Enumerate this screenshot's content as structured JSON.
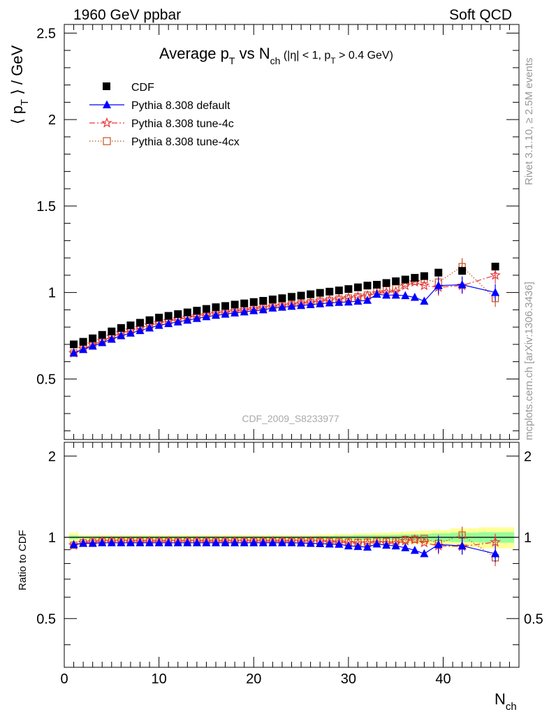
{
  "header": {
    "left": "1960 GeV ppbar",
    "right": "Soft QCD"
  },
  "side_text": {
    "rivet": "Rivet 3.1.10, ≥ 2.5M events",
    "mcplots": "mcplots.cern.ch [arXiv:1306.3436]"
  },
  "chart_data": [
    {
      "type": "scatter",
      "title": "Average pT vs Nch (|η| < 1, pT > 0.4 GeV)",
      "title_parts": {
        "main": "Average p",
        "sub1": "T",
        "vs": " vs N",
        "sub2": "ch",
        "cut_a": " (|η| < 1, p",
        "cut_sub": "T",
        "cut_b": " > 0.4 GeV)"
      },
      "ylabel": "⟨ pT ⟩ / GeV",
      "ylabel_parts": {
        "open": "⟨ p",
        "sub": "T",
        "close": " ⟩ / GeV"
      },
      "xlabel": "Nch",
      "xlabel_parts": {
        "main": "N",
        "sub": "ch"
      },
      "xlim": [
        0,
        48
      ],
      "ylim": [
        0.15,
        2.55
      ],
      "yticks": [
        0.5,
        1,
        1.5,
        2,
        2.5
      ],
      "ytick_labels": [
        "0.5",
        "1",
        "1.5",
        "2",
        "2.5"
      ],
      "xticks": [
        0,
        10,
        20,
        30,
        40
      ],
      "xtick_labels": [
        "0",
        "10",
        "20",
        "30",
        "40"
      ],
      "watermark": "CDF_2009_S8233977",
      "legend_position": "top-left",
      "x": [
        1,
        2,
        3,
        4,
        5,
        6,
        7,
        8,
        9,
        10,
        11,
        12,
        13,
        14,
        15,
        16,
        17,
        18,
        19,
        20,
        21,
        22,
        23,
        24,
        25,
        26,
        27,
        28,
        29,
        30,
        31,
        32,
        33,
        34,
        35,
        36,
        37,
        38,
        39.5,
        42,
        45.5
      ],
      "series": [
        {
          "name": "CDF",
          "color": "#000000",
          "marker": "square",
          "values": [
            0.7,
            0.715,
            0.735,
            0.755,
            0.775,
            0.795,
            0.81,
            0.825,
            0.84,
            0.855,
            0.865,
            0.875,
            0.885,
            0.895,
            0.905,
            0.915,
            0.922,
            0.93,
            0.937,
            0.945,
            0.952,
            0.96,
            0.967,
            0.975,
            0.982,
            0.99,
            0.998,
            1.005,
            1.012,
            1.02,
            1.03,
            1.04,
            1.045,
            1.055,
            1.065,
            1.075,
            1.085,
            1.095,
            1.115,
            1.125,
            1.15
          ]
        },
        {
          "name": "Pythia 8.308 default",
          "color": "#0000ff",
          "marker": "triangle",
          "line": "solid",
          "values": [
            0.65,
            0.67,
            0.69,
            0.71,
            0.73,
            0.75,
            0.765,
            0.78,
            0.795,
            0.81,
            0.82,
            0.83,
            0.84,
            0.85,
            0.86,
            0.868,
            0.875,
            0.882,
            0.888,
            0.895,
            0.9,
            0.91,
            0.915,
            0.92,
            0.925,
            0.93,
            0.935,
            0.94,
            0.943,
            0.945,
            0.95,
            0.955,
            0.99,
            0.985,
            0.985,
            0.982,
            0.972,
            0.95,
            1.04,
            1.045,
            1.0
          ]
        },
        {
          "name": "Pythia 8.308 tune-4c",
          "color": "#e8383d",
          "marker": "star",
          "line": "dashdot",
          "values": [
            0.65,
            0.675,
            0.7,
            0.72,
            0.745,
            0.765,
            0.78,
            0.795,
            0.81,
            0.823,
            0.835,
            0.845,
            0.855,
            0.863,
            0.87,
            0.878,
            0.885,
            0.892,
            0.898,
            0.905,
            0.912,
            0.918,
            0.924,
            0.93,
            0.936,
            0.942,
            0.95,
            0.955,
            0.962,
            0.968,
            0.975,
            0.982,
            0.995,
            1.0,
            1.005,
            1.04,
            1.06,
            1.04,
            1.03,
            1.04,
            1.1
          ]
        },
        {
          "name": "Pythia 8.308 tune-4cx",
          "color": "#c8501e",
          "marker": "open-square",
          "line": "dotted",
          "values": [
            0.65,
            0.675,
            0.7,
            0.72,
            0.745,
            0.765,
            0.78,
            0.795,
            0.81,
            0.823,
            0.835,
            0.845,
            0.855,
            0.863,
            0.87,
            0.878,
            0.885,
            0.892,
            0.898,
            0.905,
            0.912,
            0.918,
            0.924,
            0.93,
            0.936,
            0.942,
            0.95,
            0.955,
            0.962,
            0.968,
            0.975,
            0.985,
            1.01,
            1.015,
            1.025,
            1.055,
            1.065,
            1.075,
            1.06,
            1.15,
            0.965
          ]
        }
      ]
    },
    {
      "type": "scatter",
      "ylabel": "Ratio to CDF",
      "xlim": [
        0,
        48
      ],
      "ylim": [
        0.33,
        2.25
      ],
      "yticks": [
        0.5,
        1,
        2
      ],
      "ytick_labels": [
        "0.5",
        "1",
        "2"
      ],
      "x": [
        1,
        2,
        3,
        4,
        5,
        6,
        7,
        8,
        9,
        10,
        11,
        12,
        13,
        14,
        15,
        16,
        17,
        18,
        19,
        20,
        21,
        22,
        23,
        24,
        25,
        26,
        27,
        28,
        29,
        30,
        31,
        32,
        33,
        34,
        35,
        36,
        37,
        38,
        39.5,
        42,
        45.5
      ],
      "band_yellow_halfwidth": [
        0.04,
        0.02,
        0.02,
        0.02,
        0.02,
        0.02,
        0.02,
        0.02,
        0.02,
        0.02,
        0.02,
        0.02,
        0.02,
        0.02,
        0.02,
        0.02,
        0.02,
        0.02,
        0.02,
        0.02,
        0.02,
        0.02,
        0.02,
        0.02,
        0.02,
        0.02,
        0.025,
        0.025,
        0.03,
        0.03,
        0.035,
        0.035,
        0.04,
        0.04,
        0.045,
        0.05,
        0.055,
        0.06,
        0.065,
        0.08,
        0.09
      ],
      "band_green_halfwidth": [
        0.015,
        0.01,
        0.01,
        0.01,
        0.01,
        0.01,
        0.01,
        0.01,
        0.01,
        0.01,
        0.01,
        0.01,
        0.01,
        0.01,
        0.01,
        0.01,
        0.01,
        0.01,
        0.01,
        0.01,
        0.01,
        0.01,
        0.01,
        0.01,
        0.01,
        0.01,
        0.012,
        0.012,
        0.015,
        0.015,
        0.018,
        0.018,
        0.02,
        0.02,
        0.022,
        0.025,
        0.028,
        0.03,
        0.035,
        0.04,
        0.045
      ],
      "series": [
        {
          "name": "Pythia 8.308 default",
          "color": "#0000ff",
          "marker": "triangle",
          "line": "solid",
          "values": [
            0.94,
            0.95,
            0.95,
            0.955,
            0.955,
            0.955,
            0.955,
            0.955,
            0.955,
            0.955,
            0.955,
            0.955,
            0.955,
            0.955,
            0.955,
            0.955,
            0.955,
            0.955,
            0.955,
            0.955,
            0.955,
            0.955,
            0.955,
            0.955,
            0.953,
            0.95,
            0.948,
            0.945,
            0.943,
            0.93,
            0.925,
            0.92,
            0.945,
            0.935,
            0.93,
            0.915,
            0.895,
            0.87,
            0.94,
            0.93,
            0.87
          ]
        },
        {
          "name": "Pythia 8.308 tune-4c",
          "color": "#e8383d",
          "marker": "star",
          "line": "dashdot",
          "values": [
            0.935,
            0.955,
            0.96,
            0.965,
            0.965,
            0.965,
            0.965,
            0.965,
            0.965,
            0.965,
            0.965,
            0.965,
            0.965,
            0.965,
            0.965,
            0.965,
            0.965,
            0.965,
            0.965,
            0.965,
            0.965,
            0.965,
            0.965,
            0.965,
            0.965,
            0.965,
            0.965,
            0.96,
            0.958,
            0.955,
            0.95,
            0.95,
            0.955,
            0.95,
            0.95,
            0.97,
            0.98,
            0.955,
            0.93,
            0.925,
            0.96
          ]
        },
        {
          "name": "Pythia 8.308 tune-4cx",
          "color": "#c8501e",
          "marker": "open-square",
          "line": "dotted",
          "values": [
            0.935,
            0.955,
            0.96,
            0.965,
            0.965,
            0.965,
            0.965,
            0.965,
            0.965,
            0.965,
            0.965,
            0.965,
            0.965,
            0.965,
            0.965,
            0.965,
            0.965,
            0.965,
            0.965,
            0.965,
            0.965,
            0.965,
            0.965,
            0.965,
            0.965,
            0.965,
            0.965,
            0.963,
            0.962,
            0.96,
            0.958,
            0.96,
            0.968,
            0.965,
            0.968,
            0.982,
            0.985,
            0.99,
            0.95,
            1.02,
            0.84
          ]
        }
      ]
    }
  ]
}
